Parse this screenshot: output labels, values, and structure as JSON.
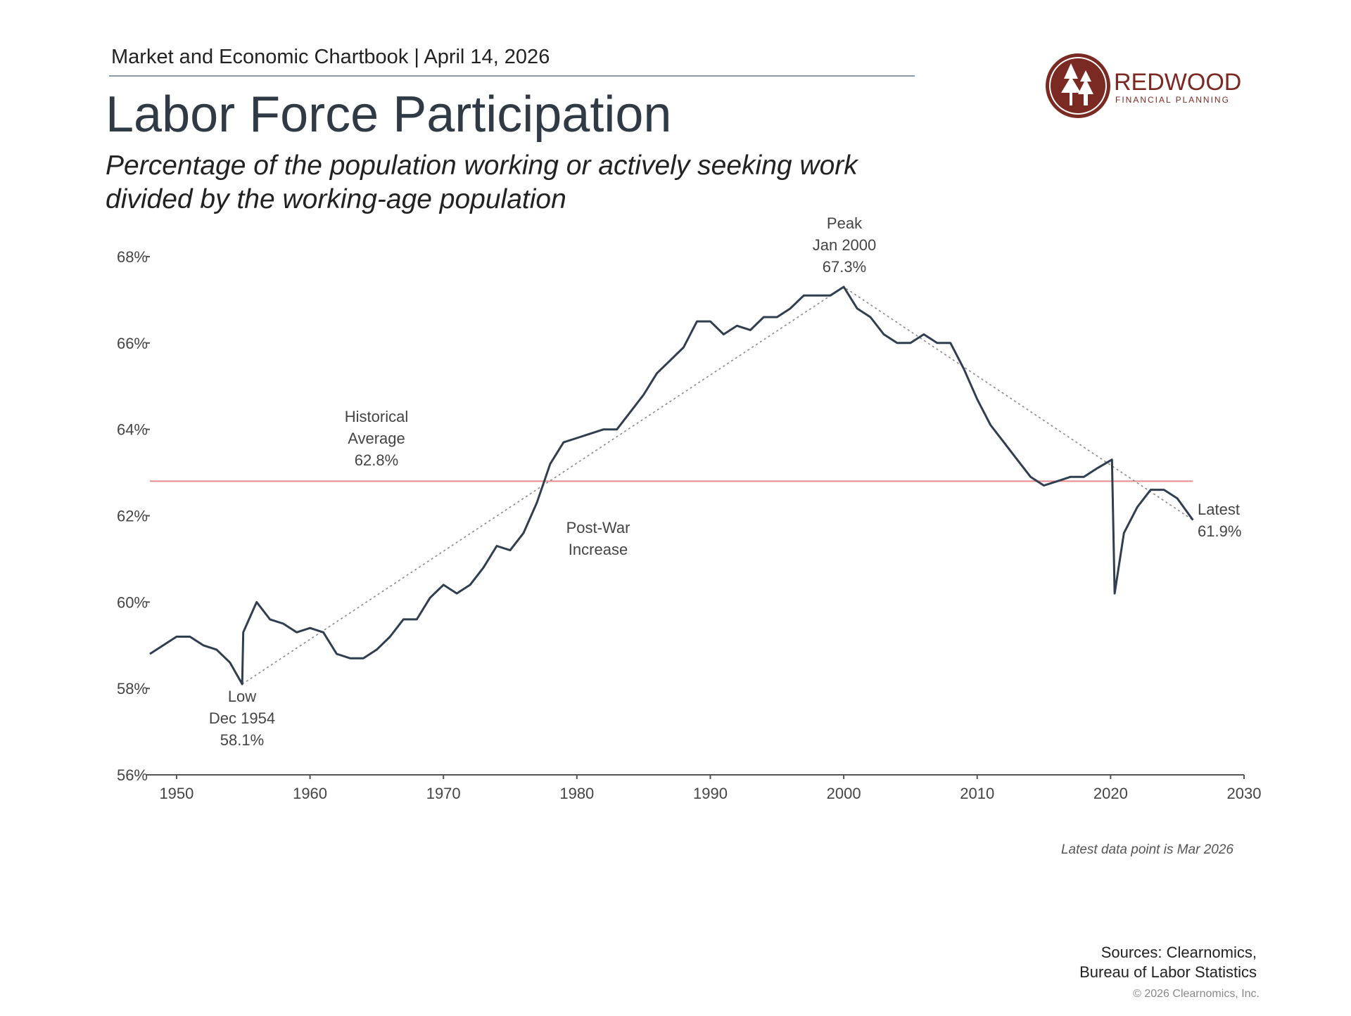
{
  "header": {
    "kicker": "Market and Economic Chartbook | April 14, 2026",
    "logo_name": "REDWOOD",
    "logo_tagline": "FINANCIAL PLANNING"
  },
  "chart_data": {
    "type": "line",
    "title": "Labor Force Participation",
    "subtitle_lines": [
      "Percentage of the population working or actively seeking work",
      "divided by the working-age population"
    ],
    "x": [
      1948,
      1949,
      1950,
      1951,
      1952,
      1953,
      1954,
      1954.92,
      1955,
      1956,
      1957,
      1958,
      1959,
      1960,
      1961,
      1962,
      1963,
      1964,
      1965,
      1966,
      1967,
      1968,
      1969,
      1970,
      1971,
      1972,
      1973,
      1974,
      1975,
      1976,
      1977,
      1978,
      1979,
      1980,
      1981,
      1982,
      1983,
      1984,
      1985,
      1986,
      1987,
      1988,
      1989,
      1990,
      1991,
      1992,
      1993,
      1994,
      1995,
      1996,
      1997,
      1998,
      1999,
      2000,
      2001,
      2002,
      2003,
      2004,
      2005,
      2006,
      2007,
      2008,
      2009,
      2010,
      2011,
      2012,
      2013,
      2014,
      2015,
      2016,
      2017,
      2018,
      2019,
      2020.1,
      2020.3,
      2021,
      2022,
      2023,
      2024,
      2025,
      2026.17
    ],
    "values": [
      58.8,
      59.0,
      59.2,
      59.2,
      59.0,
      58.9,
      58.6,
      58.1,
      59.3,
      60.0,
      59.6,
      59.5,
      59.3,
      59.4,
      59.3,
      58.8,
      58.7,
      58.7,
      58.9,
      59.2,
      59.6,
      59.6,
      60.1,
      60.4,
      60.2,
      60.4,
      60.8,
      61.3,
      61.2,
      61.6,
      62.3,
      63.2,
      63.7,
      63.8,
      63.9,
      64.0,
      64.0,
      64.4,
      64.8,
      65.3,
      65.6,
      65.9,
      66.5,
      66.5,
      66.2,
      66.4,
      66.3,
      66.6,
      66.6,
      66.8,
      67.1,
      67.1,
      67.1,
      67.3,
      66.8,
      66.6,
      66.2,
      66.0,
      66.0,
      66.2,
      66.0,
      66.0,
      65.4,
      64.7,
      64.1,
      63.7,
      63.3,
      62.9,
      62.7,
      62.8,
      62.9,
      62.9,
      63.1,
      63.3,
      60.2,
      61.6,
      62.2,
      62.6,
      62.6,
      62.4,
      61.9
    ],
    "color": "#2f3f4f",
    "xlim": [
      1948,
      2030
    ],
    "xticks": [
      1950,
      1960,
      1970,
      1980,
      1990,
      2000,
      2010,
      2020,
      2030
    ],
    "ylim": [
      56,
      68
    ],
    "yticks": [
      {
        "value": 56,
        "label": "56%"
      },
      {
        "value": 58,
        "label": "58%"
      },
      {
        "value": 60,
        "label": "60%"
      },
      {
        "value": 62,
        "label": "62%"
      },
      {
        "value": 64,
        "label": "64%"
      },
      {
        "value": 66,
        "label": "66%"
      },
      {
        "value": 68,
        "label": "68%"
      }
    ],
    "reference_line": {
      "value": 62.8,
      "color": "#e88a8c",
      "label_lines": [
        "Historical",
        "Average",
        "62.8%"
      ]
    },
    "annotations": [
      {
        "lines": [
          "Peak",
          "Jan 2000",
          "67.3%"
        ]
      },
      {
        "lines": [
          "Low",
          "Dec 1954",
          "58.1%"
        ]
      },
      {
        "lines": [
          "Latest",
          "61.9%"
        ]
      },
      {
        "lines": [
          "Post-War",
          "Increase"
        ]
      }
    ],
    "footnote": "Latest data point is Mar 2026"
  },
  "footer": {
    "sources_lines": [
      "Sources: Clearnomics,",
      "Bureau of Labor Statistics"
    ],
    "copyright": "© 2026 Clearnomics, Inc."
  }
}
